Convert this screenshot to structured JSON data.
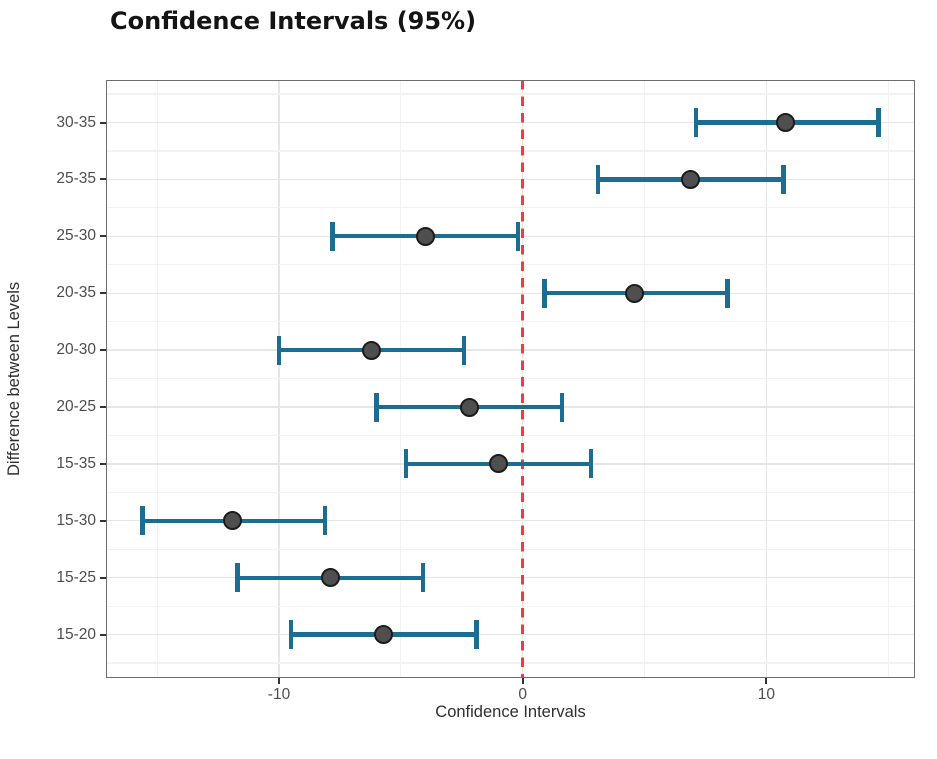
{
  "chart_data": {
    "type": "scatter",
    "subtype": "horizontal-errorbar",
    "title": "Confidence Intervals (95%)",
    "xlabel": "Confidence Intervals",
    "ylabel": "Difference between Levels",
    "x_ticks": [
      -10,
      0,
      10
    ],
    "x_grid_minor": [
      -15,
      -5,
      5,
      15
    ],
    "xlim": [
      -17.1,
      16.1
    ],
    "zero_line_x": 0,
    "grid": true,
    "legend": "none",
    "categories": [
      "30-35",
      "25-35",
      "25-30",
      "20-35",
      "20-30",
      "20-25",
      "15-35",
      "15-30",
      "15-25",
      "15-20"
    ],
    "series": [
      {
        "name": "95% confidence interval",
        "points": [
          {
            "label": "30-35",
            "diff": 10.8,
            "lower": 7.1,
            "upper": 14.6
          },
          {
            "label": "25-35",
            "diff": 6.9,
            "lower": 3.1,
            "upper": 10.7
          },
          {
            "label": "25-30",
            "diff": -4.0,
            "lower": -7.8,
            "upper": -0.2
          },
          {
            "label": "20-35",
            "diff": 4.6,
            "lower": 0.9,
            "upper": 8.4
          },
          {
            "label": "20-30",
            "diff": -6.2,
            "lower": -10.0,
            "upper": -2.4
          },
          {
            "label": "20-25",
            "diff": -2.2,
            "lower": -6.0,
            "upper": 1.6
          },
          {
            "label": "15-35",
            "diff": -1.0,
            "lower": -4.8,
            "upper": 2.8
          },
          {
            "label": "15-30",
            "diff": -11.9,
            "lower": -15.6,
            "upper": -8.1
          },
          {
            "label": "15-25",
            "diff": -7.9,
            "lower": -11.7,
            "upper": -4.1
          },
          {
            "label": "15-20",
            "diff": -5.7,
            "lower": -9.5,
            "upper": -1.9
          }
        ]
      }
    ],
    "colors": {
      "interval": "#1b6d91",
      "point_fill": "#4f4f4f",
      "point_stroke": "#1c1c1c",
      "zero_line": "#f43b3b",
      "grid_major": "#e6e6e6",
      "grid_minor": "#f2f2f2",
      "panel_border": "#6e6e6e",
      "tick_label": "#4d4d4d",
      "axis_title": "#2e2e2e",
      "title": "#141414"
    }
  }
}
